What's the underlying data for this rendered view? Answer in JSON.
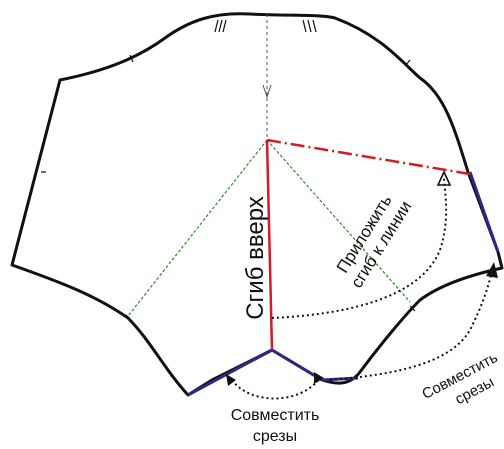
{
  "labels": {
    "fold_up": "Сгиб вверх",
    "attach_line1": "Приложить",
    "attach_line2": "сгиб к линии",
    "match_bottom_line1": "Совместить",
    "match_bottom_line2": "срезы",
    "match_right_line1": "Совместить",
    "match_right_line2": "срезы"
  },
  "colors": {
    "outline": "#111111",
    "fold_line": "#d01c24",
    "guide": "#2e8b2e",
    "seam_edge": "#2a2a86",
    "arrow": "#111111"
  }
}
